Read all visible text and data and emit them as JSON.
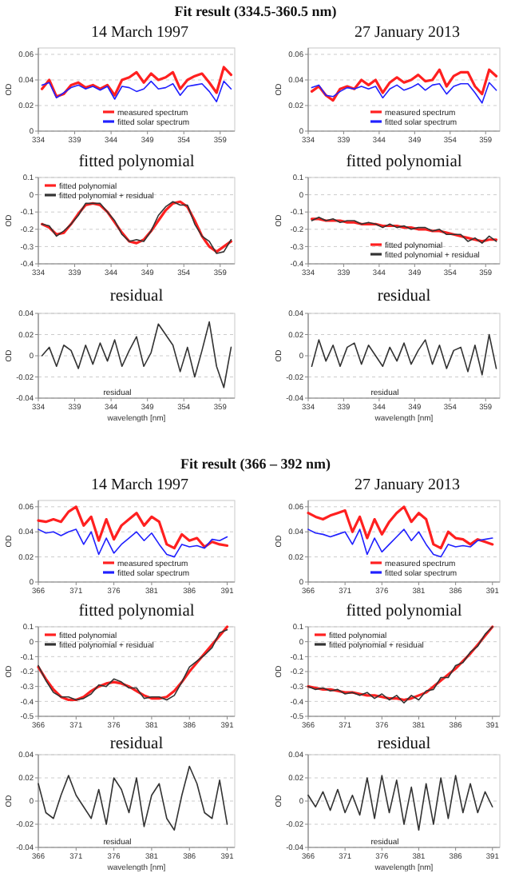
{
  "chart_data": [
    {
      "type": "line",
      "title": "14 March 1997",
      "annotations": [
        "Fit result (334.5-360.5 nm)"
      ],
      "ylabel": "OD",
      "x": [
        334.5,
        335.5,
        336.5,
        337.5,
        338.5,
        339.5,
        340.5,
        341.5,
        342.5,
        343.5,
        344.5,
        345.5,
        346.5,
        347.5,
        348.5,
        349.5,
        350.5,
        351.5,
        352.5,
        353.5,
        354.5,
        355.5,
        356.5,
        357.5,
        358.5,
        359.5,
        360.5
      ],
      "xlim": [
        334,
        361
      ],
      "xticks": [
        334,
        339,
        344,
        349,
        354,
        359
      ],
      "ylim": [
        0,
        0.065
      ],
      "yticks": [
        0,
        0.02,
        0.04,
        0.06
      ],
      "grid": "y",
      "legend": "bottom",
      "series": [
        {
          "name": "measured spectrum",
          "color": "#ff2020",
          "values": [
            0.033,
            0.04,
            0.027,
            0.029,
            0.036,
            0.038,
            0.034,
            0.036,
            0.033,
            0.036,
            0.028,
            0.04,
            0.042,
            0.046,
            0.038,
            0.045,
            0.04,
            0.042,
            0.046,
            0.033,
            0.04,
            0.043,
            0.045,
            0.038,
            0.03,
            0.05,
            0.044
          ]
        },
        {
          "name": "fitted solar spectrum",
          "color": "#2020ff",
          "values": [
            0.036,
            0.038,
            0.026,
            0.03,
            0.034,
            0.036,
            0.033,
            0.035,
            0.032,
            0.035,
            0.025,
            0.035,
            0.034,
            0.031,
            0.033,
            0.039,
            0.033,
            0.034,
            0.037,
            0.028,
            0.035,
            0.036,
            0.037,
            0.031,
            0.023,
            0.039,
            0.033
          ]
        }
      ]
    },
    {
      "type": "line",
      "title": "27 January 2013",
      "ylabel": "OD",
      "x": [
        334.5,
        335.5,
        336.5,
        337.5,
        338.5,
        339.5,
        340.5,
        341.5,
        342.5,
        343.5,
        344.5,
        345.5,
        346.5,
        347.5,
        348.5,
        349.5,
        350.5,
        351.5,
        352.5,
        353.5,
        354.5,
        355.5,
        356.5,
        357.5,
        358.5,
        359.5,
        360.5
      ],
      "xlim": [
        334,
        361
      ],
      "xticks": [
        334,
        339,
        344,
        349,
        354,
        359
      ],
      "ylim": [
        0,
        0.065
      ],
      "yticks": [
        0,
        0.02,
        0.04,
        0.06
      ],
      "grid": "y",
      "legend": "bottom",
      "series": [
        {
          "name": "measured spectrum",
          "color": "#ff2020",
          "values": [
            0.031,
            0.035,
            0.028,
            0.024,
            0.033,
            0.035,
            0.033,
            0.04,
            0.036,
            0.04,
            0.03,
            0.038,
            0.042,
            0.038,
            0.04,
            0.044,
            0.039,
            0.04,
            0.048,
            0.035,
            0.043,
            0.046,
            0.046,
            0.035,
            0.029,
            0.048,
            0.043
          ]
        },
        {
          "name": "fitted solar spectrum",
          "color": "#2020ff",
          "values": [
            0.034,
            0.036,
            0.028,
            0.027,
            0.031,
            0.034,
            0.033,
            0.035,
            0.033,
            0.035,
            0.026,
            0.033,
            0.036,
            0.032,
            0.034,
            0.037,
            0.032,
            0.036,
            0.037,
            0.029,
            0.035,
            0.037,
            0.037,
            0.03,
            0.022,
            0.038,
            0.032
          ]
        }
      ]
    },
    {
      "type": "line",
      "title": "fitted polynomial",
      "ylabel": "OD",
      "x": [
        334.5,
        335.5,
        336.5,
        337.5,
        338.5,
        339.5,
        340.5,
        341.5,
        342.5,
        343.5,
        344.5,
        345.5,
        346.5,
        347.5,
        348.5,
        349.5,
        350.5,
        351.5,
        352.5,
        353.5,
        354.5,
        355.5,
        356.5,
        357.5,
        358.5,
        359.5,
        360.5
      ],
      "xlim": [
        334,
        361
      ],
      "xticks": [
        334,
        339,
        344,
        349,
        354,
        359
      ],
      "ylim": [
        -0.4,
        0.1
      ],
      "yticks": [
        -0.4,
        -0.3,
        -0.2,
        -0.1,
        0,
        0.1
      ],
      "grid": "y",
      "legend": "top left",
      "series": [
        {
          "name": "fitted polynomial",
          "color": "#ff2020",
          "values": [
            -0.17,
            -0.19,
            -0.23,
            -0.22,
            -0.17,
            -0.11,
            -0.06,
            -0.05,
            -0.06,
            -0.1,
            -0.16,
            -0.22,
            -0.27,
            -0.28,
            -0.26,
            -0.21,
            -0.15,
            -0.09,
            -0.05,
            -0.04,
            -0.07,
            -0.15,
            -0.24,
            -0.3,
            -0.33,
            -0.3,
            -0.27
          ]
        },
        {
          "name": "fitted polynomial + residual",
          "color": "#333333",
          "values": [
            -0.17,
            -0.18,
            -0.24,
            -0.21,
            -0.17,
            -0.12,
            -0.05,
            -0.05,
            -0.05,
            -0.1,
            -0.15,
            -0.23,
            -0.27,
            -0.26,
            -0.27,
            -0.21,
            -0.12,
            -0.07,
            -0.04,
            -0.06,
            -0.06,
            -0.17,
            -0.24,
            -0.27,
            -0.34,
            -0.33,
            -0.26
          ]
        }
      ]
    },
    {
      "type": "line",
      "title": "fitted polynomial",
      "ylabel": "OD",
      "x": [
        334.5,
        335.5,
        336.5,
        337.5,
        338.5,
        339.5,
        340.5,
        341.5,
        342.5,
        343.5,
        344.5,
        345.5,
        346.5,
        347.5,
        348.5,
        349.5,
        350.5,
        351.5,
        352.5,
        353.5,
        354.5,
        355.5,
        356.5,
        357.5,
        358.5,
        359.5,
        360.5
      ],
      "xlim": [
        334,
        361
      ],
      "xticks": [
        334,
        339,
        344,
        349,
        354,
        359
      ],
      "ylim": [
        -0.4,
        0.1
      ],
      "yticks": [
        -0.4,
        -0.3,
        -0.2,
        -0.1,
        0,
        0.1
      ],
      "grid": "y",
      "legend": "bottom",
      "series": [
        {
          "name": "fitted polynomial",
          "color": "#ff2020",
          "values": [
            -0.14,
            -0.14,
            -0.15,
            -0.15,
            -0.15,
            -0.16,
            -0.16,
            -0.17,
            -0.17,
            -0.17,
            -0.18,
            -0.18,
            -0.18,
            -0.19,
            -0.19,
            -0.2,
            -0.2,
            -0.21,
            -0.21,
            -0.22,
            -0.23,
            -0.24,
            -0.25,
            -0.26,
            -0.27,
            -0.26,
            -0.26
          ]
        },
        {
          "name": "fitted polynomial + residual",
          "color": "#333333",
          "values": [
            -0.15,
            -0.13,
            -0.15,
            -0.14,
            -0.16,
            -0.15,
            -0.15,
            -0.17,
            -0.16,
            -0.17,
            -0.19,
            -0.17,
            -0.19,
            -0.18,
            -0.2,
            -0.19,
            -0.19,
            -0.21,
            -0.2,
            -0.23,
            -0.23,
            -0.23,
            -0.27,
            -0.25,
            -0.28,
            -0.24,
            -0.27
          ]
        }
      ]
    },
    {
      "type": "line",
      "title": "residual",
      "annotations": [
        "residual"
      ],
      "ylabel": "OD",
      "xlabel": "wavelength [nm]",
      "x": [
        334.5,
        335.5,
        336.5,
        337.5,
        338.5,
        339.5,
        340.5,
        341.5,
        342.5,
        343.5,
        344.5,
        345.5,
        346.5,
        347.5,
        348.5,
        349.5,
        350.5,
        351.5,
        352.5,
        353.5,
        354.5,
        355.5,
        356.5,
        357.5,
        358.5,
        359.5,
        360.5
      ],
      "xlim": [
        334,
        361
      ],
      "xticks": [
        334,
        339,
        344,
        349,
        354,
        359
      ],
      "ylim": [
        -0.04,
        0.04
      ],
      "yticks": [
        -0.04,
        -0.02,
        0,
        0.02,
        0.04
      ],
      "grid": "y",
      "series": [
        {
          "color": "#333333",
          "values": [
            0,
            0.008,
            -0.01,
            0.01,
            0.005,
            -0.012,
            0.01,
            -0.008,
            0.012,
            -0.005,
            0.015,
            -0.01,
            0.005,
            0.018,
            -0.01,
            0.003,
            0.03,
            0.02,
            0.01,
            -0.015,
            0.008,
            -0.02,
            0.005,
            0.032,
            -0.01,
            -0.03,
            0.008
          ]
        }
      ]
    },
    {
      "type": "line",
      "title": "residual",
      "annotations": [
        "residual"
      ],
      "ylabel": "OD",
      "xlabel": "wavelength [nm]",
      "x": [
        334.5,
        335.5,
        336.5,
        337.5,
        338.5,
        339.5,
        340.5,
        341.5,
        342.5,
        343.5,
        344.5,
        345.5,
        346.5,
        347.5,
        348.5,
        349.5,
        350.5,
        351.5,
        352.5,
        353.5,
        354.5,
        355.5,
        356.5,
        357.5,
        358.5,
        359.5,
        360.5
      ],
      "xlim": [
        334,
        361
      ],
      "xticks": [
        334,
        339,
        344,
        349,
        354,
        359
      ],
      "ylim": [
        -0.04,
        0.04
      ],
      "yticks": [
        -0.04,
        -0.02,
        0,
        0.02,
        0.04
      ],
      "grid": "y",
      "series": [
        {
          "color": "#333333",
          "values": [
            -0.01,
            0.015,
            -0.005,
            0.01,
            -0.01,
            0.008,
            0.012,
            -0.008,
            0.01,
            0,
            -0.01,
            0.008,
            -0.005,
            0.012,
            -0.008,
            0.005,
            0.015,
            -0.008,
            0.01,
            -0.012,
            0.005,
            0.008,
            -0.015,
            0.01,
            -0.018,
            0.02,
            -0.012
          ]
        }
      ]
    },
    {
      "type": "line",
      "title": "14 March 1997",
      "annotations": [
        "Fit result (366 – 392 nm)"
      ],
      "ylabel": "OD",
      "x": [
        366,
        367,
        368,
        369,
        370,
        371,
        372,
        373,
        374,
        375,
        376,
        377,
        378,
        379,
        380,
        381,
        382,
        383,
        384,
        385,
        386,
        387,
        388,
        389,
        390,
        391
      ],
      "xlim": [
        366,
        392
      ],
      "xticks": [
        366,
        371,
        376,
        381,
        386,
        391
      ],
      "ylim": [
        0,
        0.065
      ],
      "yticks": [
        0,
        0.02,
        0.04,
        0.06
      ],
      "grid": "y",
      "legend": "bottom",
      "series": [
        {
          "name": "measured spectrum",
          "color": "#ff2020",
          "values": [
            0.049,
            0.048,
            0.05,
            0.048,
            0.056,
            0.06,
            0.045,
            0.052,
            0.033,
            0.05,
            0.034,
            0.045,
            0.05,
            0.055,
            0.045,
            0.052,
            0.048,
            0.03,
            0.027,
            0.038,
            0.033,
            0.035,
            0.028,
            0.032,
            0.03,
            0.029
          ]
        },
        {
          "name": "fitted solar spectrum",
          "color": "#2020ff",
          "values": [
            0.042,
            0.039,
            0.04,
            0.037,
            0.04,
            0.042,
            0.03,
            0.04,
            0.022,
            0.035,
            0.023,
            0.03,
            0.035,
            0.04,
            0.033,
            0.039,
            0.03,
            0.022,
            0.02,
            0.03,
            0.028,
            0.029,
            0.027,
            0.034,
            0.033,
            0.036
          ]
        }
      ]
    },
    {
      "type": "line",
      "title": "27 January 2013",
      "ylabel": "OD",
      "x": [
        366,
        367,
        368,
        369,
        370,
        371,
        372,
        373,
        374,
        375,
        376,
        377,
        378,
        379,
        380,
        381,
        382,
        383,
        384,
        385,
        386,
        387,
        388,
        389,
        390,
        391
      ],
      "xlim": [
        366,
        392
      ],
      "xticks": [
        366,
        371,
        376,
        381,
        386,
        391
      ],
      "ylim": [
        0,
        0.065
      ],
      "yticks": [
        0,
        0.02,
        0.04,
        0.06
      ],
      "grid": "y",
      "legend": "bottom",
      "series": [
        {
          "name": "measured spectrum",
          "color": "#ff2020",
          "values": [
            0.055,
            0.052,
            0.05,
            0.053,
            0.055,
            0.057,
            0.04,
            0.052,
            0.035,
            0.05,
            0.038,
            0.048,
            0.055,
            0.06,
            0.048,
            0.055,
            0.05,
            0.03,
            0.027,
            0.04,
            0.035,
            0.034,
            0.03,
            0.034,
            0.032,
            0.03
          ]
        },
        {
          "name": "fitted solar spectrum",
          "color": "#2020ff",
          "values": [
            0.042,
            0.039,
            0.038,
            0.036,
            0.038,
            0.04,
            0.03,
            0.042,
            0.022,
            0.035,
            0.024,
            0.03,
            0.036,
            0.042,
            0.033,
            0.04,
            0.03,
            0.022,
            0.02,
            0.03,
            0.028,
            0.029,
            0.028,
            0.033,
            0.034,
            0.035
          ]
        }
      ]
    },
    {
      "type": "line",
      "title": "fitted polynomial",
      "ylabel": "OD",
      "x": [
        366,
        367,
        368,
        369,
        370,
        371,
        372,
        373,
        374,
        375,
        376,
        377,
        378,
        379,
        380,
        381,
        382,
        383,
        384,
        385,
        386,
        387,
        388,
        389,
        390,
        391
      ],
      "xlim": [
        366,
        392
      ],
      "xticks": [
        366,
        371,
        376,
        381,
        386,
        391
      ],
      "ylim": [
        -0.5,
        0.1
      ],
      "yticks": [
        -0.5,
        -0.4,
        -0.3,
        -0.2,
        -0.1,
        0,
        0.1
      ],
      "grid": "y",
      "legend": "top left",
      "series": [
        {
          "name": "fitted polynomial",
          "color": "#ff2020",
          "values": [
            -0.17,
            -0.25,
            -0.32,
            -0.37,
            -0.39,
            -0.39,
            -0.37,
            -0.33,
            -0.3,
            -0.28,
            -0.27,
            -0.28,
            -0.3,
            -0.33,
            -0.36,
            -0.38,
            -0.38,
            -0.37,
            -0.33,
            -0.27,
            -0.2,
            -0.14,
            -0.08,
            -0.02,
            0.04,
            0.1
          ]
        },
        {
          "name": "fitted polynomial + residual",
          "color": "#333333",
          "values": [
            -0.16,
            -0.26,
            -0.34,
            -0.37,
            -0.37,
            -0.39,
            -0.38,
            -0.35,
            -0.29,
            -0.3,
            -0.25,
            -0.27,
            -0.31,
            -0.31,
            -0.38,
            -0.37,
            -0.37,
            -0.39,
            -0.36,
            -0.27,
            -0.17,
            -0.13,
            -0.09,
            -0.04,
            0.06,
            0.08
          ]
        }
      ]
    },
    {
      "type": "line",
      "title": "fitted polynomial",
      "ylabel": "OD",
      "x": [
        366,
        367,
        368,
        369,
        370,
        371,
        372,
        373,
        374,
        375,
        376,
        377,
        378,
        379,
        380,
        381,
        382,
        383,
        384,
        385,
        386,
        387,
        388,
        389,
        390,
        391
      ],
      "xlim": [
        366,
        392
      ],
      "xticks": [
        366,
        371,
        376,
        381,
        386,
        391
      ],
      "ylim": [
        -0.5,
        0.1
      ],
      "yticks": [
        -0.5,
        -0.4,
        -0.3,
        -0.2,
        -0.1,
        0,
        0.1
      ],
      "grid": "y",
      "legend": "top left",
      "series": [
        {
          "name": "fitted polynomial",
          "color": "#ff2020",
          "values": [
            -0.3,
            -0.31,
            -0.32,
            -0.32,
            -0.33,
            -0.34,
            -0.34,
            -0.35,
            -0.36,
            -0.36,
            -0.37,
            -0.38,
            -0.38,
            -0.39,
            -0.38,
            -0.36,
            -0.34,
            -0.3,
            -0.26,
            -0.22,
            -0.18,
            -0.13,
            -0.08,
            -0.02,
            0.04,
            0.1
          ]
        },
        {
          "name": "fitted polynomial + residual",
          "color": "#333333",
          "values": [
            -0.3,
            -0.32,
            -0.31,
            -0.33,
            -0.32,
            -0.35,
            -0.34,
            -0.36,
            -0.34,
            -0.38,
            -0.35,
            -0.39,
            -0.36,
            -0.41,
            -0.36,
            -0.39,
            -0.33,
            -0.32,
            -0.24,
            -0.24,
            -0.16,
            -0.14,
            -0.07,
            -0.03,
            0.05,
            0.1
          ]
        }
      ]
    },
    {
      "type": "line",
      "title": "residual",
      "annotations": [
        "residual"
      ],
      "ylabel": "OD",
      "xlabel": "wavelength [nm]",
      "x": [
        366,
        367,
        368,
        369,
        370,
        371,
        372,
        373,
        374,
        375,
        376,
        377,
        378,
        379,
        380,
        381,
        382,
        383,
        384,
        385,
        386,
        387,
        388,
        389,
        390,
        391
      ],
      "xlim": [
        366,
        392
      ],
      "xticks": [
        366,
        371,
        376,
        381,
        386,
        391
      ],
      "ylim": [
        -0.04,
        0.04
      ],
      "yticks": [
        -0.04,
        -0.02,
        0,
        0.02,
        0.04
      ],
      "grid": "y",
      "series": [
        {
          "color": "#333333",
          "values": [
            0.015,
            -0.01,
            -0.015,
            0.005,
            0.022,
            0.005,
            -0.005,
            -0.015,
            0.01,
            -0.02,
            0.02,
            0.01,
            -0.01,
            0.02,
            -0.022,
            0.005,
            0.015,
            -0.015,
            -0.025,
            0.005,
            0.03,
            0.015,
            -0.01,
            -0.015,
            0.018,
            -0.02
          ]
        }
      ]
    },
    {
      "type": "line",
      "title": "residual",
      "annotations": [
        "residual"
      ],
      "ylabel": "OD",
      "xlabel": "wavelength [nm]",
      "x": [
        366,
        367,
        368,
        369,
        370,
        371,
        372,
        373,
        374,
        375,
        376,
        377,
        378,
        379,
        380,
        381,
        382,
        383,
        384,
        385,
        386,
        387,
        388,
        389,
        390,
        391
      ],
      "xlim": [
        366,
        392
      ],
      "xticks": [
        366,
        371,
        376,
        381,
        386,
        391
      ],
      "ylim": [
        -0.04,
        0.04
      ],
      "yticks": [
        -0.04,
        -0.02,
        0,
        0.02,
        0.04
      ],
      "grid": "y",
      "series": [
        {
          "color": "#333333",
          "values": [
            0.005,
            -0.005,
            0.008,
            -0.008,
            0.01,
            -0.01,
            0.005,
            -0.012,
            0.02,
            -0.015,
            0.022,
            -0.01,
            0.018,
            -0.02,
            0.012,
            -0.025,
            0.015,
            -0.02,
            0.02,
            -0.015,
            0.022,
            -0.01,
            0.015,
            -0.01,
            0.008,
            -0.005
          ]
        }
      ]
    }
  ]
}
